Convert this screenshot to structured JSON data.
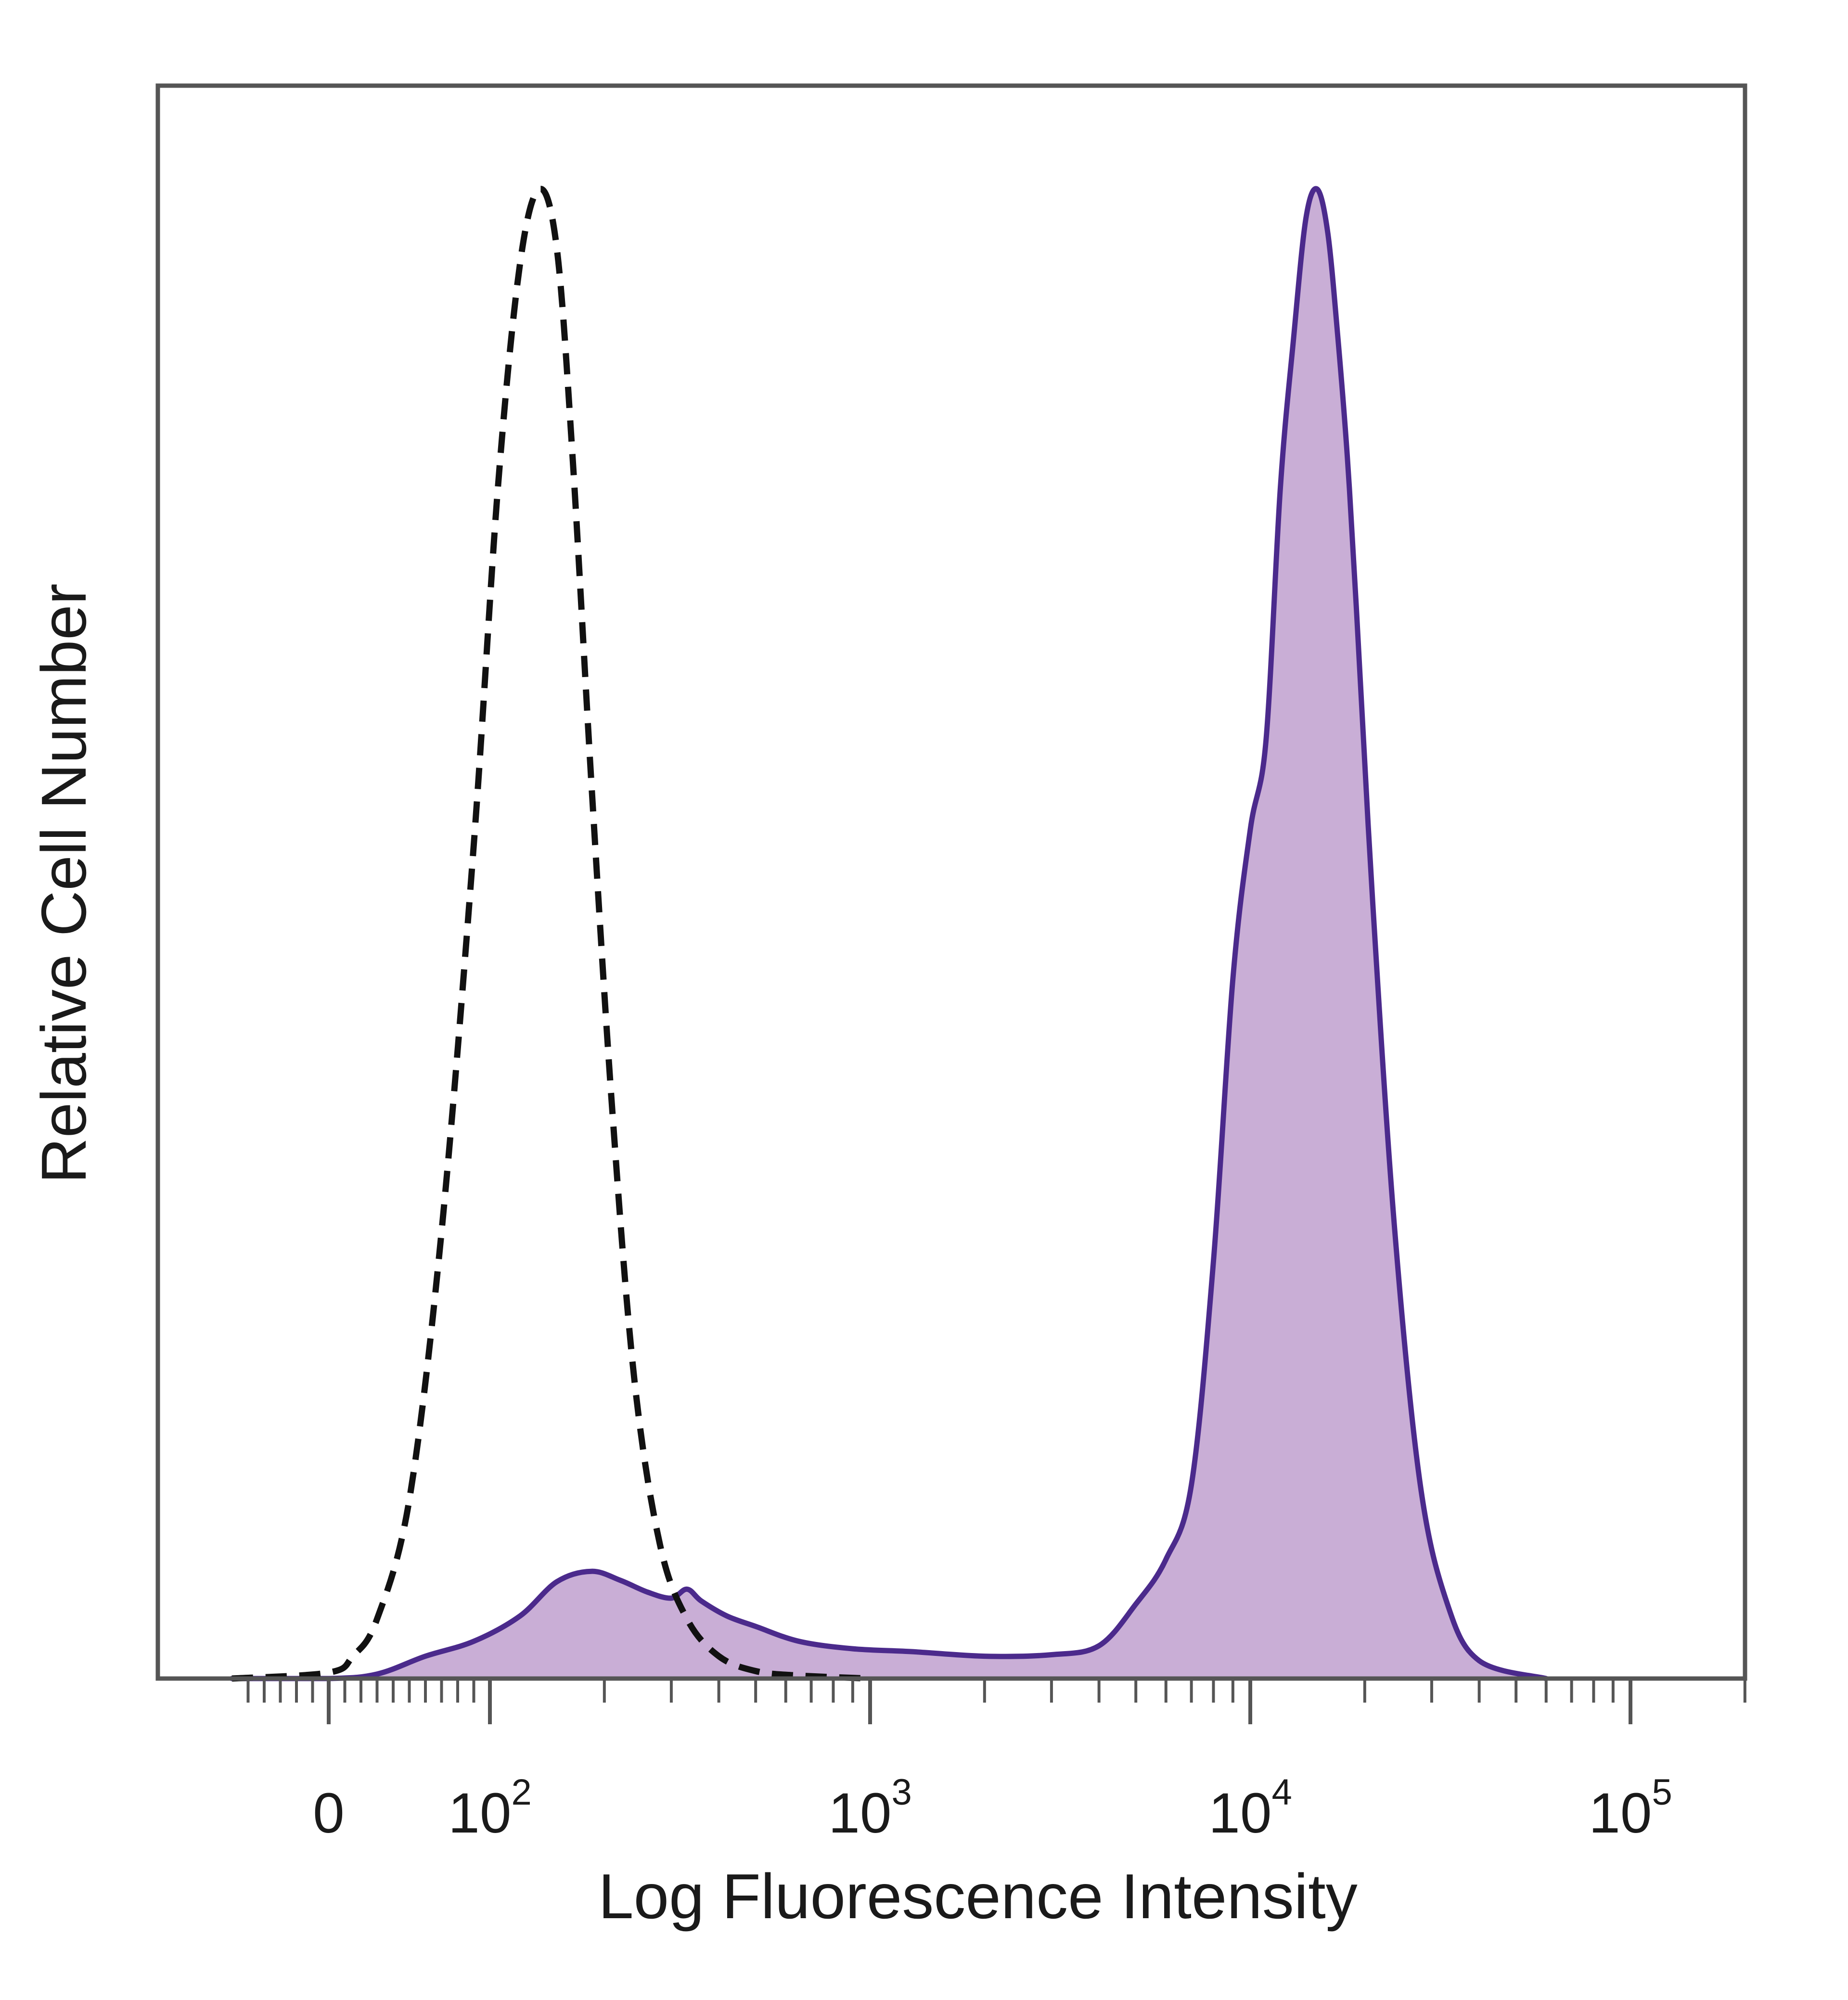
{
  "chart_data": {
    "type": "area",
    "title": "",
    "xlabel": "Log Fluorescence Intensity",
    "ylabel": "Relative Cell Number",
    "x_scale": "biexponential",
    "xlim": [
      -60,
      240000
    ],
    "ylim": [
      0,
      100
    ],
    "grid": false,
    "legend": "none",
    "x_ticks": [
      {
        "value": 0,
        "base": "0",
        "exp": ""
      },
      {
        "value": 100,
        "base": "10",
        "exp": "2"
      },
      {
        "value": 1000,
        "base": "10",
        "exp": "3"
      },
      {
        "value": 10000,
        "base": "10",
        "exp": "4"
      },
      {
        "value": 100000,
        "base": "10",
        "exp": "5"
      }
    ],
    "colors": {
      "stained_line": "#4b2a8c",
      "stained_fill": "#c9aed6",
      "control_line": "#111111",
      "frame": "#555555"
    },
    "series": [
      {
        "style": "dashed-unfilled",
        "x": [
          -60,
          0,
          15,
          30,
          50,
          70,
          90,
          105,
          120,
          135,
          150,
          165,
          185,
          210,
          240,
          280,
          330,
          400,
          500,
          650,
          1000
        ],
        "y": [
          0,
          0.4,
          1.5,
          4,
          12,
          30,
          56,
          80,
          95,
          100,
          96,
          82,
          60,
          38,
          20,
          9,
          4,
          1.5,
          0.5,
          0.2,
          0
        ]
      },
      {
        "style": "solid-filled",
        "x": [
          -60,
          0,
          30,
          60,
          90,
          120,
          150,
          185,
          220,
          260,
          300,
          330,
          360,
          420,
          500,
          650,
          900,
          1300,
          2000,
          3000,
          4000,
          5000,
          6000,
          7000,
          8000,
          9000,
          10000,
          11000,
          12000,
          13000,
          14000,
          15000,
          16000,
          17000,
          18000,
          19000,
          21000,
          24000,
          28000,
          33000,
          40000,
          60000
        ],
        "y": [
          0,
          0,
          0.3,
          1.5,
          2.5,
          4.2,
          6.5,
          7.2,
          6.6,
          5.8,
          5.4,
          6,
          5.2,
          4.2,
          3.5,
          2.5,
          2,
          1.8,
          1.5,
          1.6,
          2.2,
          5,
          8,
          13,
          28,
          47,
          57,
          63,
          80,
          90,
          98,
          100,
          97,
          90,
          82,
          72,
          52,
          30,
          13,
          5,
          1.2,
          0
        ]
      }
    ]
  }
}
